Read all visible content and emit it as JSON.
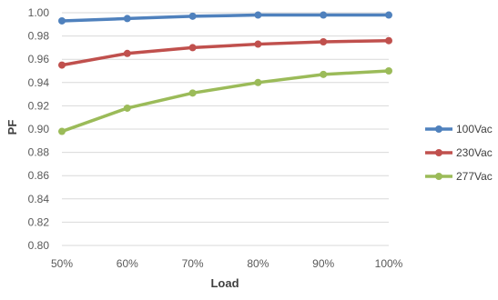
{
  "chart_data": {
    "type": "line",
    "title": "",
    "xlabel": "Load",
    "ylabel": "PF",
    "categories": [
      "50%",
      "60%",
      "70%",
      "80%",
      "90%",
      "100%"
    ],
    "ylim": [
      0.8,
      1.0
    ],
    "yticks": [
      "0.80",
      "0.82",
      "0.84",
      "0.86",
      "0.88",
      "0.90",
      "0.92",
      "0.94",
      "0.96",
      "0.98",
      "1.00"
    ],
    "grid": true,
    "legend": "right",
    "series": [
      {
        "name": "100Vac",
        "color": "#4f81bd",
        "values": [
          0.993,
          0.995,
          0.997,
          0.998,
          0.998,
          0.998
        ]
      },
      {
        "name": "230Vac",
        "color": "#c0504d",
        "values": [
          0.955,
          0.965,
          0.97,
          0.973,
          0.975,
          0.976
        ]
      },
      {
        "name": "277Vac",
        "color": "#9bbb59",
        "values": [
          0.898,
          0.918,
          0.931,
          0.94,
          0.947,
          0.95
        ]
      }
    ]
  }
}
